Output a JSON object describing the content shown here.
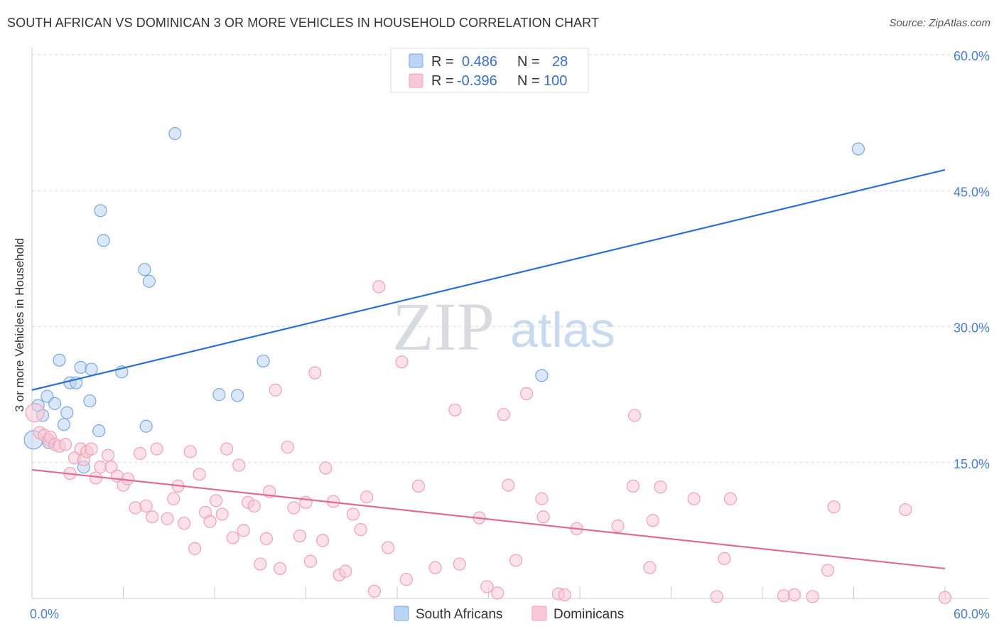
{
  "title": "SOUTH AFRICAN VS DOMINICAN 3 OR MORE VEHICLES IN HOUSEHOLD CORRELATION CHART",
  "source": "Source: ZipAtlas.com",
  "watermark": {
    "zip": "ZIP",
    "atlas": "atlas"
  },
  "chart_data": {
    "type": "scatter",
    "title": "SOUTH AFRICAN VS DOMINICAN 3 OR MORE VEHICLES IN HOUSEHOLD CORRELATION CHART",
    "xlabel": "",
    "ylabel": "3 or more Vehicles in Household",
    "xlim": [
      0,
      60
    ],
    "ylim": [
      0,
      60
    ],
    "x_ticks": [
      "0.0%",
      "60.0%"
    ],
    "y_ticks": [
      {
        "value": 15,
        "label": "15.0%"
      },
      {
        "value": 30,
        "label": "30.0%"
      },
      {
        "value": 45,
        "label": "45.0%"
      },
      {
        "value": 60,
        "label": "60.0%"
      }
    ],
    "grid": true,
    "legend_placement": "top-center",
    "series": [
      {
        "name": "South Africans",
        "color": "#7aa7e0",
        "fill": "#bcd4f4",
        "line_color": "#2b6fcf",
        "r": "0.486",
        "n": "28",
        "trend": [
          [
            0,
            23.0
          ],
          [
            60,
            47.3
          ]
        ],
        "points": [
          [
            0.1,
            17.5
          ],
          [
            0.4,
            21.3
          ],
          [
            0.7,
            20.2
          ],
          [
            1.0,
            22.3
          ],
          [
            1.1,
            17.2
          ],
          [
            1.5,
            21.5
          ],
          [
            1.8,
            26.3
          ],
          [
            2.1,
            19.2
          ],
          [
            2.3,
            20.5
          ],
          [
            2.5,
            23.8
          ],
          [
            2.9,
            23.8
          ],
          [
            3.2,
            25.5
          ],
          [
            3.4,
            14.5
          ],
          [
            3.8,
            21.8
          ],
          [
            3.9,
            25.3
          ],
          [
            4.4,
            18.5
          ],
          [
            4.5,
            42.8
          ],
          [
            4.7,
            39.5
          ],
          [
            5.9,
            25.0
          ],
          [
            7.4,
            36.3
          ],
          [
            7.5,
            19.0
          ],
          [
            7.7,
            35.0
          ],
          [
            9.4,
            51.3
          ],
          [
            12.3,
            22.5
          ],
          [
            13.5,
            22.4
          ],
          [
            15.2,
            26.2
          ],
          [
            33.5,
            24.6
          ],
          [
            54.3,
            49.6
          ]
        ]
      },
      {
        "name": "Dominicans",
        "color": "#f0a0b8",
        "fill": "#f8c8d6",
        "line_color": "#e06a96",
        "r": "-0.396",
        "n": "100",
        "trend": [
          [
            0,
            14.2
          ],
          [
            60,
            3.3
          ]
        ],
        "points": [
          [
            0.2,
            20.5
          ],
          [
            0.5,
            18.3
          ],
          [
            0.8,
            18.0
          ],
          [
            1.1,
            17.5
          ],
          [
            1.2,
            17.8
          ],
          [
            1.5,
            17.0
          ],
          [
            1.8,
            16.8
          ],
          [
            2.2,
            17.0
          ],
          [
            2.5,
            13.8
          ],
          [
            2.8,
            15.5
          ],
          [
            3.2,
            16.5
          ],
          [
            3.4,
            15.3
          ],
          [
            3.6,
            16.2
          ],
          [
            3.9,
            16.5
          ],
          [
            4.2,
            13.3
          ],
          [
            4.5,
            14.5
          ],
          [
            5.0,
            15.8
          ],
          [
            5.2,
            14.5
          ],
          [
            5.6,
            13.5
          ],
          [
            6.0,
            12.5
          ],
          [
            6.3,
            13.2
          ],
          [
            6.8,
            10.0
          ],
          [
            7.1,
            16.0
          ],
          [
            7.5,
            10.2
          ],
          [
            7.9,
            9.0
          ],
          [
            8.2,
            16.5
          ],
          [
            8.9,
            8.8
          ],
          [
            9.3,
            11.0
          ],
          [
            9.6,
            12.4
          ],
          [
            10.0,
            8.3
          ],
          [
            10.4,
            16.2
          ],
          [
            10.7,
            5.5
          ],
          [
            11.0,
            13.7
          ],
          [
            11.4,
            9.5
          ],
          [
            11.7,
            8.5
          ],
          [
            12.1,
            10.8
          ],
          [
            12.5,
            9.3
          ],
          [
            12.8,
            16.5
          ],
          [
            13.2,
            6.7
          ],
          [
            13.6,
            14.7
          ],
          [
            13.9,
            7.5
          ],
          [
            14.2,
            10.6
          ],
          [
            14.6,
            10.2
          ],
          [
            15.0,
            3.8
          ],
          [
            15.4,
            6.6
          ],
          [
            15.6,
            11.8
          ],
          [
            16.0,
            23.0
          ],
          [
            16.3,
            3.3
          ],
          [
            16.8,
            16.7
          ],
          [
            17.2,
            10.0
          ],
          [
            17.6,
            6.9
          ],
          [
            18.0,
            10.6
          ],
          [
            18.3,
            4.1
          ],
          [
            18.6,
            24.9
          ],
          [
            19.1,
            6.4
          ],
          [
            19.3,
            14.4
          ],
          [
            19.8,
            10.7
          ],
          [
            20.2,
            2.6
          ],
          [
            20.6,
            3.0
          ],
          [
            21.1,
            9.3
          ],
          [
            21.6,
            7.6
          ],
          [
            22.0,
            11.2
          ],
          [
            22.5,
            0.8
          ],
          [
            22.8,
            34.4
          ],
          [
            23.4,
            5.6
          ],
          [
            24.3,
            26.1
          ],
          [
            24.6,
            2.1
          ],
          [
            25.4,
            12.4
          ],
          [
            26.5,
            3.4
          ],
          [
            27.8,
            20.8
          ],
          [
            28.1,
            3.8
          ],
          [
            29.4,
            8.9
          ],
          [
            29.9,
            1.3
          ],
          [
            30.6,
            0.6
          ],
          [
            31.0,
            20.3
          ],
          [
            31.3,
            12.5
          ],
          [
            31.8,
            4.2
          ],
          [
            32.5,
            22.6
          ],
          [
            33.5,
            11.0
          ],
          [
            33.6,
            9.0
          ],
          [
            34.6,
            0.5
          ],
          [
            35.0,
            0.4
          ],
          [
            35.8,
            7.7
          ],
          [
            38.5,
            8.0
          ],
          [
            39.5,
            12.4
          ],
          [
            39.6,
            20.2
          ],
          [
            40.6,
            3.4
          ],
          [
            40.8,
            8.6
          ],
          [
            41.3,
            12.3
          ],
          [
            43.5,
            11.0
          ],
          [
            45.0,
            0.2
          ],
          [
            45.5,
            4.4
          ],
          [
            45.9,
            11.0
          ],
          [
            49.4,
            0.3
          ],
          [
            50.1,
            0.4
          ],
          [
            51.3,
            0.2
          ],
          [
            52.3,
            3.1
          ],
          [
            52.7,
            10.1
          ],
          [
            57.4,
            9.8
          ],
          [
            60.0,
            0.1
          ]
        ]
      }
    ]
  }
}
